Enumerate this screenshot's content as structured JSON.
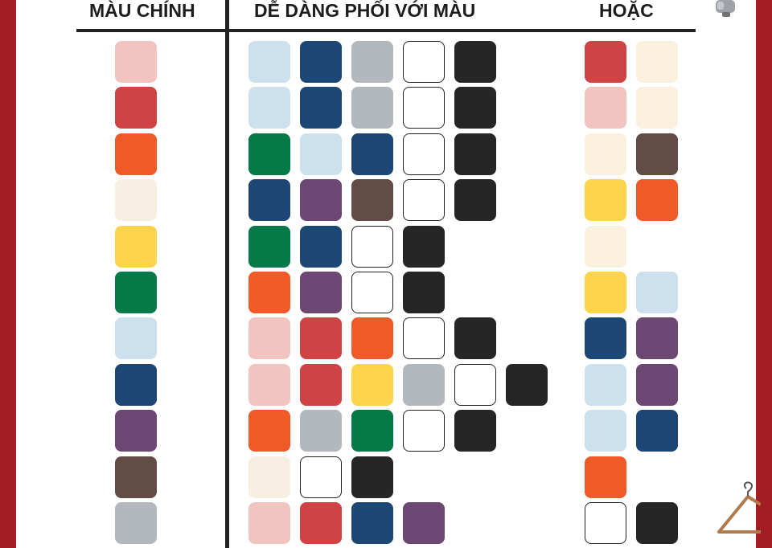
{
  "headers": {
    "main_color": "MÀU CHÍNH",
    "easy_match": "DỄ DÀNG PHỐI VỚI MÀU",
    "or": "HOẶC"
  },
  "palette": {
    "pink": "#f2c4c0",
    "red": "#d04345",
    "orange": "#f05a28",
    "cream": "#f7f0e2",
    "ivory": "#fbefdd",
    "yellow": "#fbd44b",
    "green": "#057a48",
    "lightblue": "#cce0ee",
    "navy": "#1c4673",
    "purple": "#6d4774",
    "brown": "#634b46",
    "gray": "#b3b7be",
    "white": "#ffffff",
    "black": "#262626"
  },
  "rows": [
    {
      "main": "pink",
      "match": [
        "lightblue",
        "navy",
        "gray",
        "white",
        "black"
      ],
      "alt": [
        "red",
        "ivory"
      ]
    },
    {
      "main": "red",
      "match": [
        "lightblue",
        "navy",
        "gray",
        "white",
        "black"
      ],
      "alt": [
        "pink",
        "ivory"
      ]
    },
    {
      "main": "orange",
      "match": [
        "green",
        "lightblue",
        "navy",
        "white",
        "black"
      ],
      "alt": [
        "ivory",
        "brown"
      ]
    },
    {
      "main": "cream",
      "match": [
        "navy",
        "purple",
        "brown",
        "white",
        "black"
      ],
      "alt": [
        "yellow",
        "orange"
      ]
    },
    {
      "main": "yellow",
      "match": [
        "green",
        "navy",
        "white",
        "black"
      ],
      "alt": [
        "ivory"
      ]
    },
    {
      "main": "green",
      "match": [
        "orange",
        "purple",
        "white",
        "black"
      ],
      "alt": [
        "yellow",
        "lightblue"
      ]
    },
    {
      "main": "lightblue",
      "match": [
        "pink",
        "red",
        "orange",
        "white",
        "black"
      ],
      "alt": [
        "navy",
        "purple"
      ]
    },
    {
      "main": "navy",
      "match": [
        "pink",
        "red",
        "yellow",
        "gray",
        "white",
        "black"
      ],
      "alt": [
        "lightblue",
        "purple"
      ]
    },
    {
      "main": "purple",
      "match": [
        "orange",
        "gray",
        "green",
        "white",
        "black"
      ],
      "alt": [
        "lightblue",
        "navy"
      ]
    },
    {
      "main": "brown",
      "match": [
        "cream",
        "white",
        "black"
      ],
      "alt": [
        "orange"
      ]
    },
    {
      "main": "gray",
      "match": [
        "pink",
        "red",
        "navy",
        "purple"
      ],
      "alt": [
        "white",
        "black"
      ]
    }
  ],
  "decorations": {
    "top_right": "bottle-icon",
    "bottom_right": "hanger-icon"
  }
}
